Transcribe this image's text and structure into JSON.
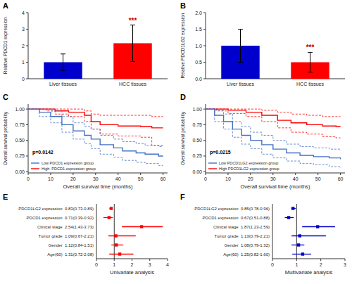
{
  "chart_data": [
    {
      "type": "bar",
      "title": "A",
      "categories": [
        "Liver tissues",
        "HCC tissues"
      ],
      "values": [
        1.0,
        2.15
      ],
      "errors": [
        0.5,
        1.1
      ],
      "colors": [
        "#0000CC",
        "#FF0000"
      ],
      "ylabel": "Relative PDCD1 expression",
      "ylim": [
        0,
        4
      ],
      "yticks": [
        0,
        1,
        2,
        3,
        4
      ],
      "annotations": [
        {
          "text": "***",
          "category": "HCC tissues",
          "color": "#CC0000"
        }
      ],
      "grid": false
    },
    {
      "type": "bar",
      "title": "B",
      "categories": [
        "Liver tissues",
        "HCC tissues"
      ],
      "values": [
        1.0,
        0.5
      ],
      "errors": [
        0.5,
        0.3
      ],
      "colors": [
        "#0000CC",
        "#FF0000"
      ],
      "ylabel": "Relative PDCD1LG2 expression",
      "ylim": [
        0.0,
        2.0
      ],
      "yticks": [
        {
          "value": 0.0,
          "label": "0.0"
        },
        0.5,
        {
          "value": 1.0,
          "label": "1.0"
        },
        1.5,
        {
          "value": 2.0,
          "label": "2.0"
        }
      ],
      "annotations": [
        {
          "text": "***",
          "category": "HCC tissues",
          "color": "#CC0000"
        }
      ],
      "grid": false
    },
    {
      "type": "step",
      "title": "C",
      "xlabel": "Overall survival time (months)",
      "ylabel": "Overall survival probability",
      "xlim": [
        0,
        62
      ],
      "ylim": [
        -0.02,
        1.08
      ],
      "xticks": [
        0,
        10,
        20,
        30,
        40,
        50,
        60
      ],
      "yticks": [
        {
          "value": 0.0,
          "label": "0.00"
        },
        0.25,
        {
          "value": 0.5,
          "label": "0.50"
        },
        0.75,
        {
          "value": 1.0,
          "label": "1.00"
        }
      ],
      "annotations": [
        {
          "text": "p=0.0142"
        }
      ],
      "legend": "lower left",
      "grid": false,
      "series": [
        {
          "name": "Low PDCD1 expression group",
          "color": "#4472C4",
          "x": [
            0,
            5,
            10,
            15,
            20,
            25,
            28,
            32,
            38,
            42,
            48,
            52,
            58,
            60
          ],
          "values": [
            1.0,
            0.95,
            0.88,
            0.75,
            0.65,
            0.58,
            0.52,
            0.43,
            0.38,
            0.33,
            0.3,
            0.28,
            0.25,
            0.25
          ],
          "ci_upper": [
            1.0,
            1.0,
            0.97,
            0.88,
            0.78,
            0.72,
            0.68,
            0.58,
            0.52,
            0.48,
            0.45,
            0.42,
            0.4,
            0.4
          ],
          "ci_lower": [
            1.0,
            0.88,
            0.78,
            0.63,
            0.52,
            0.45,
            0.37,
            0.28,
            0.23,
            0.18,
            0.15,
            0.13,
            0.1,
            0.1
          ]
        },
        {
          "name": "High  PDCD1 expression group",
          "color": "#FF0000",
          "x": [
            0,
            8,
            12,
            18,
            25,
            28,
            32,
            40,
            50,
            55,
            60
          ],
          "values": [
            1.0,
            1.0,
            0.97,
            0.95,
            0.9,
            0.8,
            0.75,
            0.73,
            0.72,
            0.7,
            0.7
          ],
          "ci_upper": [
            1.0,
            1.0,
            1.0,
            1.0,
            0.97,
            0.92,
            0.9,
            0.9,
            0.9,
            0.88,
            0.88
          ],
          "ci_lower": [
            1.0,
            0.97,
            0.92,
            0.88,
            0.8,
            0.68,
            0.6,
            0.57,
            0.55,
            0.42,
            0.42
          ]
        }
      ]
    },
    {
      "type": "step",
      "title": "D",
      "xlabel": "Overall survival time (months)",
      "ylabel": "Overall survival probability",
      "xlim": [
        0,
        62
      ],
      "ylim": [
        -0.02,
        1.08
      ],
      "xticks": [
        0,
        10,
        20,
        30,
        40,
        50,
        60
      ],
      "yticks": [
        {
          "value": 0.0,
          "label": "0.00"
        },
        0.25,
        {
          "value": 0.5,
          "label": "0.50"
        },
        0.75,
        {
          "value": 1.0,
          "label": "1.00"
        }
      ],
      "annotations": [
        {
          "text": "p=0.0215"
        }
      ],
      "legend": "lower left",
      "grid": false,
      "series": [
        {
          "name": "Low PDCD1LG2 expression group",
          "color": "#4472C4",
          "x": [
            0,
            4,
            8,
            12,
            16,
            20,
            25,
            30,
            36,
            42,
            48,
            55,
            60
          ],
          "values": [
            1.0,
            0.9,
            0.8,
            0.68,
            0.58,
            0.5,
            0.43,
            0.36,
            0.3,
            0.26,
            0.24,
            0.22,
            0.2
          ],
          "ci_upper": [
            1.0,
            0.98,
            0.92,
            0.8,
            0.72,
            0.63,
            0.58,
            0.5,
            0.44,
            0.4,
            0.38,
            0.36,
            0.34
          ],
          "ci_lower": [
            1.0,
            0.8,
            0.68,
            0.55,
            0.44,
            0.37,
            0.28,
            0.22,
            0.17,
            0.13,
            0.11,
            0.08,
            0.06
          ]
        },
        {
          "name": "High PDCD1LG2 expression group",
          "color": "#FF0000",
          "x": [
            0,
            5,
            10,
            18,
            25,
            32,
            38,
            45,
            52,
            58,
            60
          ],
          "values": [
            1.0,
            1.0,
            0.98,
            0.95,
            0.9,
            0.82,
            0.78,
            0.75,
            0.73,
            0.72,
            0.72
          ],
          "ci_upper": [
            1.0,
            1.0,
            1.0,
            1.0,
            0.98,
            0.95,
            0.92,
            0.9,
            0.88,
            0.88,
            0.88
          ],
          "ci_lower": [
            1.0,
            0.97,
            0.93,
            0.88,
            0.8,
            0.7,
            0.63,
            0.6,
            0.56,
            0.54,
            0.54
          ]
        }
      ]
    },
    {
      "type": "forest",
      "title": "E",
      "xlabel": "Univariate analysis",
      "categories": [
        "PDCD1LG2 expression  0.83(0.73-0.89)",
        "PDCD1 expression  0.71(0.39-0.92)",
        "Clinical stage  2.54(1.43-3.73)",
        "Tumor grade  1.09(0.67-2.21)",
        "Gender  1.12(0.84-1.51)",
        "Age(60)  1.31(0.72-2.08)"
      ],
      "values": [
        0.83,
        0.71,
        2.54,
        1.09,
        1.12,
        1.31
      ],
      "ci_low": [
        0.73,
        0.39,
        1.43,
        0.67,
        0.84,
        0.72
      ],
      "ci_high": [
        0.89,
        0.92,
        3.73,
        2.21,
        1.51,
        2.08
      ],
      "refline": 1,
      "color": "#FF0000",
      "xlim": [
        0,
        4
      ],
      "xticks": [
        0,
        1,
        2,
        3,
        4
      ],
      "grid": false
    },
    {
      "type": "forest",
      "title": "F",
      "xlabel": "Multivariate analysis",
      "categories": [
        "PDCD1LG2 expression  0.85(0.78-0.96)",
        "PDCD1 expression  0.67(0.51-0.88)",
        "Clinical stage  1.87(1.23-2.59)",
        "Tumor grade  1.13(0.79-2.21)",
        "Gender  1.08(0.79-1.32)",
        "Age(60)  1.25(0.82-1.60)"
      ],
      "values": [
        0.85,
        0.67,
        1.87,
        1.13,
        1.08,
        1.25
      ],
      "ci_low": [
        0.78,
        0.51,
        1.23,
        0.79,
        0.79,
        0.82
      ],
      "ci_high": [
        0.96,
        0.88,
        2.59,
        2.21,
        1.32,
        1.6
      ],
      "refline": 1,
      "color": "#0000CC",
      "xlim": [
        0,
        3
      ],
      "xticks": [
        0,
        1,
        2,
        3
      ],
      "grid": false
    }
  ]
}
